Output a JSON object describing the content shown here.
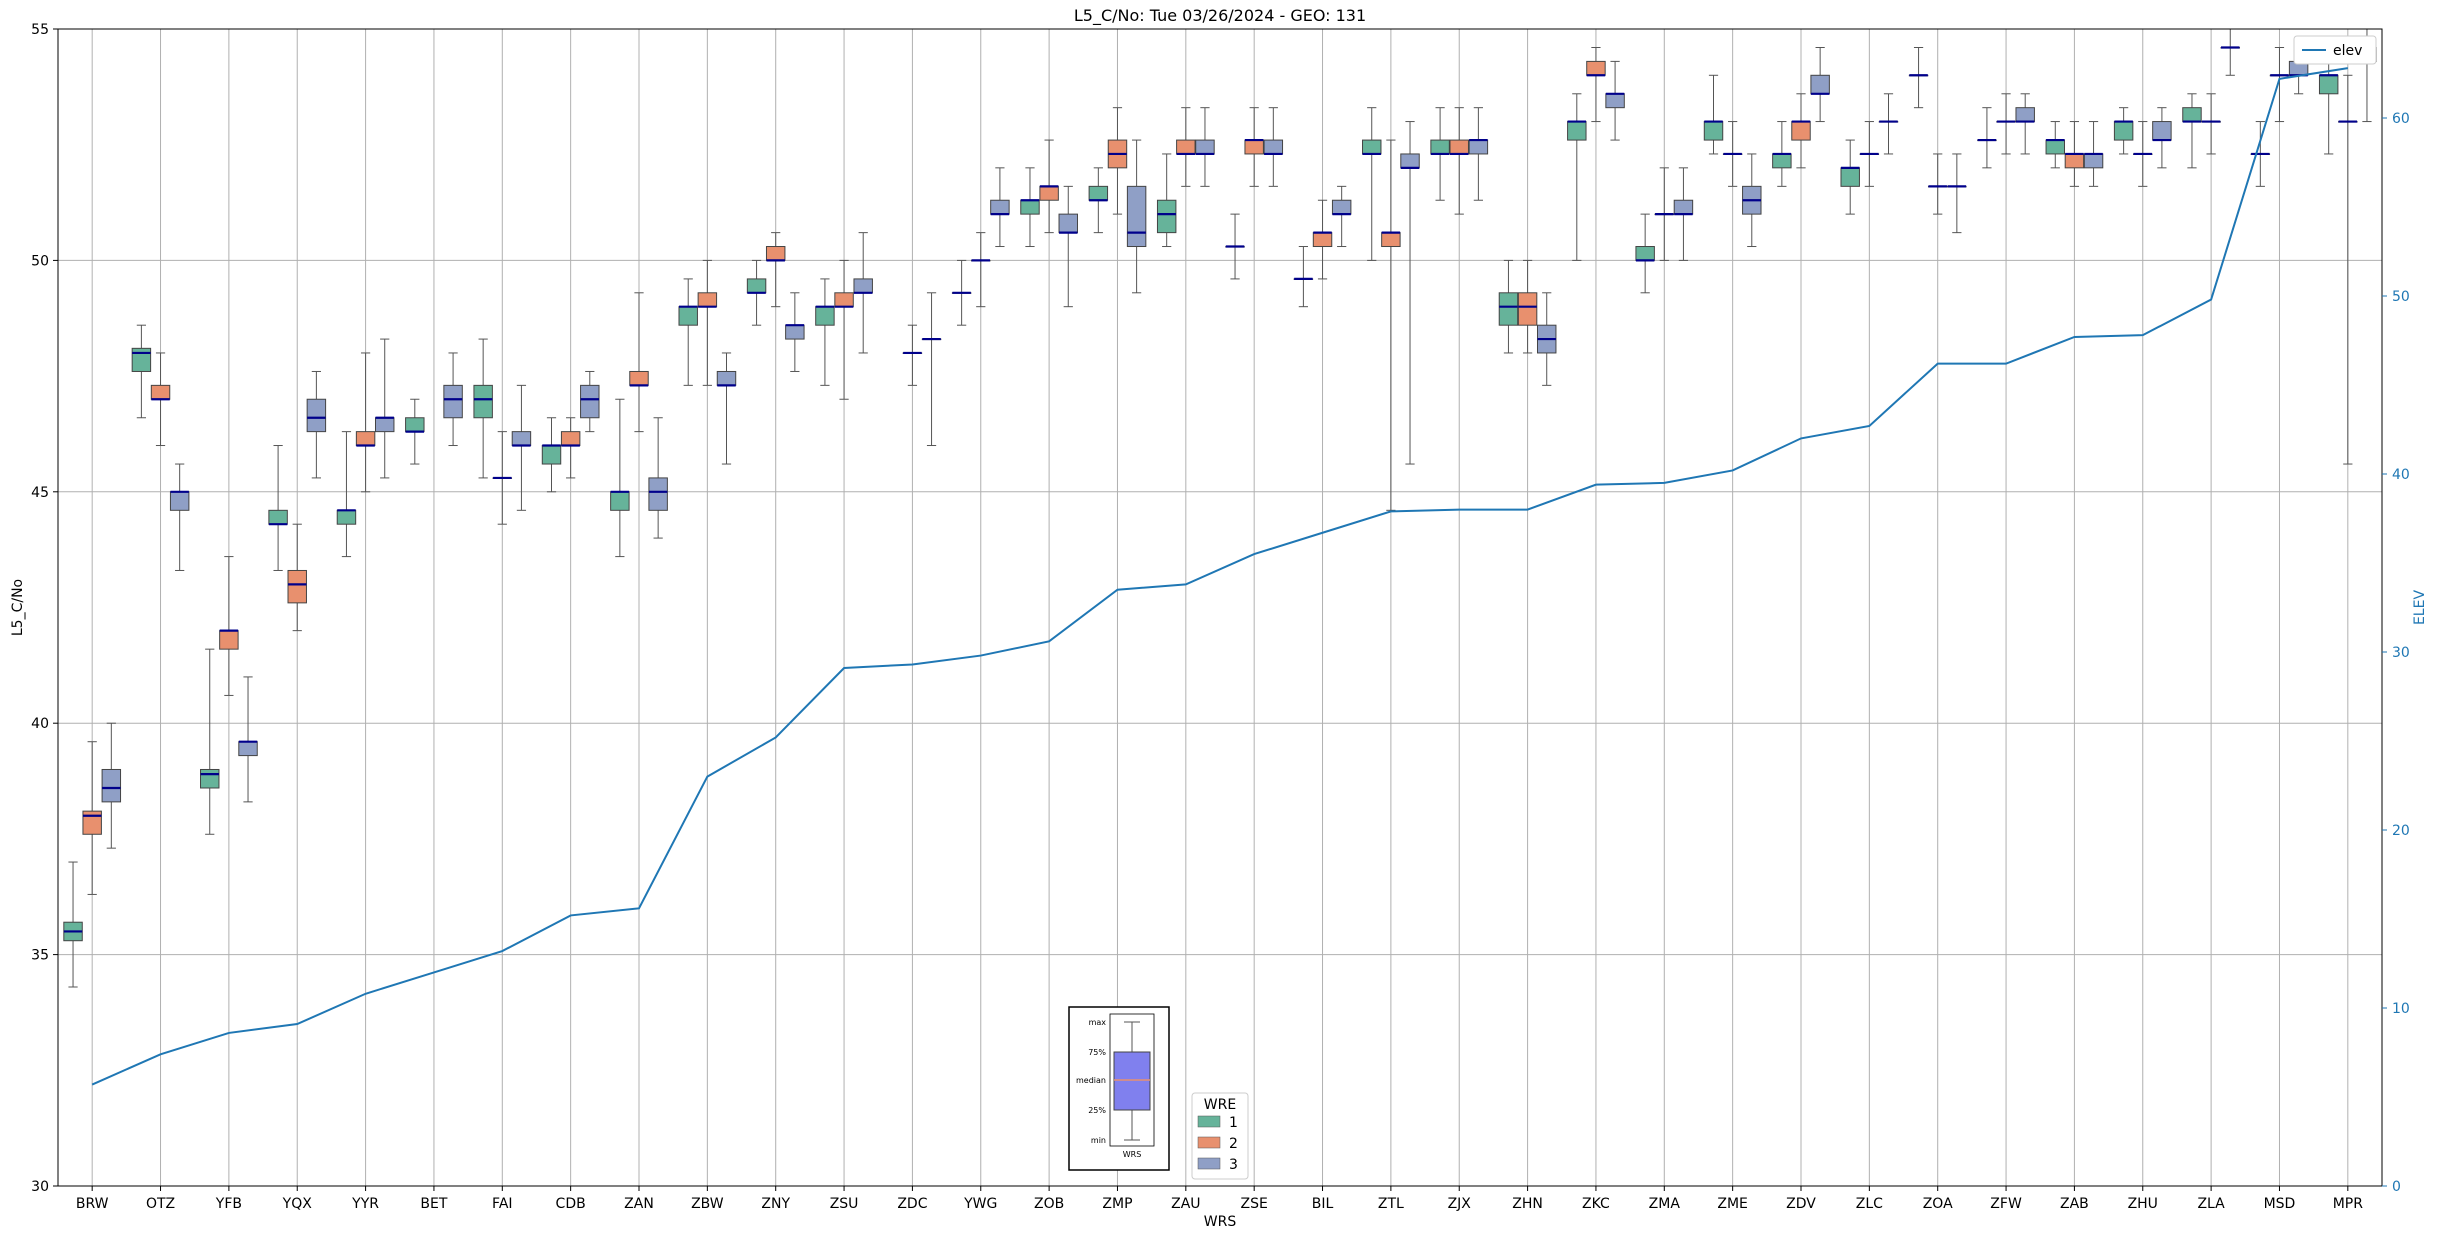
{
  "chart_data": {
    "type": "box",
    "title": "L5_C/No: Tue 03/26/2024 - GEO: 131",
    "xlabel": "WRS",
    "ylabel": "L5_C/No",
    "y2label": "ELEV",
    "ylim": [
      30,
      55
    ],
    "y2lim": [
      0,
      65
    ],
    "yticks": [
      30,
      35,
      40,
      45,
      50,
      55
    ],
    "y2ticks": [
      0,
      10,
      20,
      30,
      40,
      50,
      60
    ],
    "grid": true,
    "categories": [
      "BRW",
      "OTZ",
      "YFB",
      "YQX",
      "YYR",
      "BET",
      "FAI",
      "CDB",
      "ZAN",
      "ZBW",
      "ZNY",
      "ZSU",
      "ZDC",
      "YWG",
      "ZOB",
      "ZMP",
      "ZAU",
      "ZSE",
      "BIL",
      "ZTL",
      "ZJX",
      "ZHN",
      "ZKC",
      "ZMA",
      "ZME",
      "ZDV",
      "ZLC",
      "ZOA",
      "ZFW",
      "ZAB",
      "ZHU",
      "ZLA",
      "MSD",
      "MPR"
    ],
    "hue_title": "WRE",
    "hue_levels": [
      {
        "name": "1",
        "color": "#66b39a"
      },
      {
        "name": "2",
        "color": "#e8906e"
      },
      {
        "name": "3",
        "color": "#8f9fc6"
      }
    ],
    "median_color": "#00008b",
    "boxes": [
      {
        "cat": "BRW",
        "wre": 1,
        "min": 34.3,
        "q1": 35.3,
        "med": 35.5,
        "q3": 35.7,
        "max": 37.0
      },
      {
        "cat": "BRW",
        "wre": 2,
        "min": 36.3,
        "q1": 37.6,
        "med": 38.0,
        "q3": 38.1,
        "max": 39.6
      },
      {
        "cat": "BRW",
        "wre": 3,
        "min": 37.3,
        "q1": 38.3,
        "med": 38.6,
        "q3": 39.0,
        "max": 40.0
      },
      {
        "cat": "OTZ",
        "wre": 1,
        "min": 46.6,
        "q1": 47.6,
        "med": 48.0,
        "q3": 48.1,
        "max": 48.6
      },
      {
        "cat": "OTZ",
        "wre": 2,
        "min": 46.0,
        "q1": 47.0,
        "med": 47.0,
        "q3": 47.3,
        "max": 48.0
      },
      {
        "cat": "OTZ",
        "wre": 3,
        "min": 43.3,
        "q1": 44.6,
        "med": 45.0,
        "q3": 45.0,
        "max": 45.6
      },
      {
        "cat": "YFB",
        "wre": 1,
        "min": 37.6,
        "q1": 38.6,
        "med": 38.9,
        "q3": 39.0,
        "max": 41.6
      },
      {
        "cat": "YFB",
        "wre": 2,
        "min": 40.6,
        "q1": 41.6,
        "med": 42.0,
        "q3": 42.0,
        "max": 43.6
      },
      {
        "cat": "YFB",
        "wre": 3,
        "min": 38.3,
        "q1": 39.3,
        "med": 39.6,
        "q3": 39.6,
        "max": 41.0
      },
      {
        "cat": "YQX",
        "wre": 1,
        "min": 43.3,
        "q1": 44.3,
        "med": 44.3,
        "q3": 44.6,
        "max": 46.0
      },
      {
        "cat": "YQX",
        "wre": 2,
        "min": 42.0,
        "q1": 42.6,
        "med": 43.0,
        "q3": 43.3,
        "max": 44.3
      },
      {
        "cat": "YQX",
        "wre": 3,
        "min": 45.3,
        "q1": 46.3,
        "med": 46.6,
        "q3": 47.0,
        "max": 47.6
      },
      {
        "cat": "YYR",
        "wre": 1,
        "min": 43.6,
        "q1": 44.3,
        "med": 44.6,
        "q3": 44.6,
        "max": 46.3
      },
      {
        "cat": "YYR",
        "wre": 2,
        "min": 45.0,
        "q1": 46.0,
        "med": 46.0,
        "q3": 46.3,
        "max": 48.0
      },
      {
        "cat": "YYR",
        "wre": 3,
        "min": 45.3,
        "q1": 46.3,
        "med": 46.6,
        "q3": 46.6,
        "max": 48.3
      },
      {
        "cat": "BET",
        "wre": 1,
        "min": 45.6,
        "q1": 46.3,
        "med": 46.3,
        "q3": 46.6,
        "max": 47.0
      },
      {
        "cat": "BET",
        "wre": 3,
        "min": 46.0,
        "q1": 46.6,
        "med": 47.0,
        "q3": 47.3,
        "max": 48.0
      },
      {
        "cat": "FAI",
        "wre": 1,
        "min": 45.3,
        "q1": 46.6,
        "med": 47.0,
        "q3": 47.3,
        "max": 48.3
      },
      {
        "cat": "FAI",
        "wre": 2,
        "min": 44.3,
        "q1": 45.3,
        "med": 45.3,
        "q3": 45.3,
        "max": 46.3
      },
      {
        "cat": "FAI",
        "wre": 3,
        "min": 44.6,
        "q1": 46.0,
        "med": 46.0,
        "q3": 46.3,
        "max": 47.3
      },
      {
        "cat": "CDB",
        "wre": 1,
        "min": 45.0,
        "q1": 45.6,
        "med": 46.0,
        "q3": 46.0,
        "max": 46.6
      },
      {
        "cat": "CDB",
        "wre": 2,
        "min": 45.3,
        "q1": 46.0,
        "med": 46.0,
        "q3": 46.3,
        "max": 46.6
      },
      {
        "cat": "CDB",
        "wre": 3,
        "min": 46.3,
        "q1": 46.6,
        "med": 47.0,
        "q3": 47.3,
        "max": 47.6
      },
      {
        "cat": "ZAN",
        "wre": 1,
        "min": 43.6,
        "q1": 44.6,
        "med": 45.0,
        "q3": 45.0,
        "max": 47.0
      },
      {
        "cat": "ZAN",
        "wre": 2,
        "min": 46.3,
        "q1": 47.3,
        "med": 47.3,
        "q3": 47.6,
        "max": 49.3
      },
      {
        "cat": "ZAN",
        "wre": 3,
        "min": 44.0,
        "q1": 44.6,
        "med": 45.0,
        "q3": 45.3,
        "max": 46.6
      },
      {
        "cat": "ZBW",
        "wre": 1,
        "min": 47.3,
        "q1": 48.6,
        "med": 49.0,
        "q3": 49.0,
        "max": 49.6
      },
      {
        "cat": "ZBW",
        "wre": 2,
        "min": 47.3,
        "q1": 49.0,
        "med": 49.0,
        "q3": 49.3,
        "max": 50.0
      },
      {
        "cat": "ZBW",
        "wre": 3,
        "min": 45.6,
        "q1": 47.3,
        "med": 47.3,
        "q3": 47.6,
        "max": 48.0
      },
      {
        "cat": "ZNY",
        "wre": 1,
        "min": 48.6,
        "q1": 49.3,
        "med": 49.3,
        "q3": 49.6,
        "max": 50.0
      },
      {
        "cat": "ZNY",
        "wre": 2,
        "min": 49.0,
        "q1": 50.0,
        "med": 50.0,
        "q3": 50.3,
        "max": 50.6
      },
      {
        "cat": "ZNY",
        "wre": 3,
        "min": 47.6,
        "q1": 48.3,
        "med": 48.6,
        "q3": 48.6,
        "max": 49.3
      },
      {
        "cat": "ZSU",
        "wre": 1,
        "min": 47.3,
        "q1": 48.6,
        "med": 49.0,
        "q3": 49.0,
        "max": 49.6
      },
      {
        "cat": "ZSU",
        "wre": 2,
        "min": 47.0,
        "q1": 49.0,
        "med": 49.0,
        "q3": 49.3,
        "max": 50.0
      },
      {
        "cat": "ZSU",
        "wre": 3,
        "min": 48.0,
        "q1": 49.3,
        "med": 49.3,
        "q3": 49.6,
        "max": 50.6
      },
      {
        "cat": "ZDC",
        "wre": 2,
        "min": 47.3,
        "q1": 48.0,
        "med": 48.0,
        "q3": 48.0,
        "max": 48.6
      },
      {
        "cat": "ZDC",
        "wre": 3,
        "min": 46.0,
        "q1": 48.3,
        "med": 48.3,
        "q3": 48.3,
        "max": 49.3
      },
      {
        "cat": "YWG",
        "wre": 1,
        "min": 48.6,
        "q1": 49.3,
        "med": 49.3,
        "q3": 49.3,
        "max": 50.0
      },
      {
        "cat": "YWG",
        "wre": 2,
        "min": 49.0,
        "q1": 50.0,
        "med": 50.0,
        "q3": 50.0,
        "max": 50.6
      },
      {
        "cat": "YWG",
        "wre": 3,
        "min": 50.3,
        "q1": 51.0,
        "med": 51.0,
        "q3": 51.3,
        "max": 52.0
      },
      {
        "cat": "ZOB",
        "wre": 1,
        "min": 50.3,
        "q1": 51.0,
        "med": 51.3,
        "q3": 51.3,
        "max": 52.0
      },
      {
        "cat": "ZOB",
        "wre": 2,
        "min": 50.6,
        "q1": 51.3,
        "med": 51.6,
        "q3": 51.6,
        "max": 52.6
      },
      {
        "cat": "ZOB",
        "wre": 3,
        "min": 49.0,
        "q1": 50.6,
        "med": 50.6,
        "q3": 51.0,
        "max": 51.6
      },
      {
        "cat": "ZMP",
        "wre": 1,
        "min": 50.6,
        "q1": 51.3,
        "med": 51.3,
        "q3": 51.6,
        "max": 52.0
      },
      {
        "cat": "ZMP",
        "wre": 2,
        "min": 51.0,
        "q1": 52.0,
        "med": 52.3,
        "q3": 52.6,
        "max": 53.3
      },
      {
        "cat": "ZMP",
        "wre": 3,
        "min": 49.3,
        "q1": 50.3,
        "med": 50.6,
        "q3": 51.6,
        "max": 52.6
      },
      {
        "cat": "ZAU",
        "wre": 1,
        "min": 50.3,
        "q1": 50.6,
        "med": 51.0,
        "q3": 51.3,
        "max": 52.3
      },
      {
        "cat": "ZAU",
        "wre": 2,
        "min": 51.6,
        "q1": 52.3,
        "med": 52.3,
        "q3": 52.6,
        "max": 53.3
      },
      {
        "cat": "ZAU",
        "wre": 3,
        "min": 51.6,
        "q1": 52.3,
        "med": 52.3,
        "q3": 52.6,
        "max": 53.3
      },
      {
        "cat": "ZSE",
        "wre": 1,
        "min": 49.6,
        "q1": 50.3,
        "med": 50.3,
        "q3": 50.3,
        "max": 51.0
      },
      {
        "cat": "ZSE",
        "wre": 2,
        "min": 51.6,
        "q1": 52.3,
        "med": 52.6,
        "q3": 52.6,
        "max": 53.3
      },
      {
        "cat": "ZSE",
        "wre": 3,
        "min": 51.6,
        "q1": 52.3,
        "med": 52.3,
        "q3": 52.6,
        "max": 53.3
      },
      {
        "cat": "BIL",
        "wre": 1,
        "min": 49.0,
        "q1": 49.6,
        "med": 49.6,
        "q3": 49.6,
        "max": 50.3
      },
      {
        "cat": "BIL",
        "wre": 2,
        "min": 49.6,
        "q1": 50.3,
        "med": 50.6,
        "q3": 50.6,
        "max": 51.3
      },
      {
        "cat": "BIL",
        "wre": 3,
        "min": 50.3,
        "q1": 51.0,
        "med": 51.0,
        "q3": 51.3,
        "max": 51.6
      },
      {
        "cat": "ZTL",
        "wre": 1,
        "min": 50.0,
        "q1": 52.3,
        "med": 52.3,
        "q3": 52.6,
        "max": 53.3
      },
      {
        "cat": "ZTL",
        "wre": 2,
        "min": 44.6,
        "q1": 50.3,
        "med": 50.6,
        "q3": 50.6,
        "max": 52.6
      },
      {
        "cat": "ZTL",
        "wre": 3,
        "min": 45.6,
        "q1": 52.0,
        "med": 52.0,
        "q3": 52.3,
        "max": 53.0
      },
      {
        "cat": "ZJX",
        "wre": 1,
        "min": 51.3,
        "q1": 52.3,
        "med": 52.3,
        "q3": 52.6,
        "max": 53.3
      },
      {
        "cat": "ZJX",
        "wre": 2,
        "min": 51.0,
        "q1": 52.3,
        "med": 52.3,
        "q3": 52.6,
        "max": 53.3
      },
      {
        "cat": "ZJX",
        "wre": 3,
        "min": 51.3,
        "q1": 52.3,
        "med": 52.6,
        "q3": 52.6,
        "max": 53.3
      },
      {
        "cat": "ZHN",
        "wre": 1,
        "min": 48.0,
        "q1": 48.6,
        "med": 49.0,
        "q3": 49.3,
        "max": 50.0
      },
      {
        "cat": "ZHN",
        "wre": 2,
        "min": 48.0,
        "q1": 48.6,
        "med": 49.0,
        "q3": 49.3,
        "max": 50.0
      },
      {
        "cat": "ZHN",
        "wre": 3,
        "min": 47.3,
        "q1": 48.0,
        "med": 48.3,
        "q3": 48.6,
        "max": 49.3
      },
      {
        "cat": "ZKC",
        "wre": 1,
        "min": 50.0,
        "q1": 52.6,
        "med": 53.0,
        "q3": 53.0,
        "max": 53.6
      },
      {
        "cat": "ZKC",
        "wre": 2,
        "min": 53.0,
        "q1": 54.0,
        "med": 54.0,
        "q3": 54.3,
        "max": 54.6
      },
      {
        "cat": "ZKC",
        "wre": 3,
        "min": 52.6,
        "q1": 53.3,
        "med": 53.6,
        "q3": 53.6,
        "max": 54.3
      },
      {
        "cat": "ZMA",
        "wre": 1,
        "min": 49.3,
        "q1": 50.0,
        "med": 50.0,
        "q3": 50.3,
        "max": 51.0
      },
      {
        "cat": "ZMA",
        "wre": 2,
        "min": 50.0,
        "q1": 51.0,
        "med": 51.0,
        "q3": 51.0,
        "max": 52.0
      },
      {
        "cat": "ZMA",
        "wre": 3,
        "min": 50.0,
        "q1": 51.0,
        "med": 51.0,
        "q3": 51.3,
        "max": 52.0
      },
      {
        "cat": "ZME",
        "wre": 1,
        "min": 52.3,
        "q1": 52.6,
        "med": 53.0,
        "q3": 53.0,
        "max": 54.0
      },
      {
        "cat": "ZME",
        "wre": 2,
        "min": 51.6,
        "q1": 52.3,
        "med": 52.3,
        "q3": 52.3,
        "max": 53.0
      },
      {
        "cat": "ZME",
        "wre": 3,
        "min": 50.3,
        "q1": 51.0,
        "med": 51.3,
        "q3": 51.6,
        "max": 52.3
      },
      {
        "cat": "ZDV",
        "wre": 1,
        "min": 51.6,
        "q1": 52.0,
        "med": 52.3,
        "q3": 52.3,
        "max": 53.0
      },
      {
        "cat": "ZDV",
        "wre": 2,
        "min": 52.0,
        "q1": 52.6,
        "med": 53.0,
        "q3": 53.0,
        "max": 53.6
      },
      {
        "cat": "ZDV",
        "wre": 3,
        "min": 53.0,
        "q1": 53.6,
        "med": 53.6,
        "q3": 54.0,
        "max": 54.6
      },
      {
        "cat": "ZLC",
        "wre": 1,
        "min": 51.0,
        "q1": 51.6,
        "med": 52.0,
        "q3": 52.0,
        "max": 52.6
      },
      {
        "cat": "ZLC",
        "wre": 2,
        "min": 51.6,
        "q1": 52.3,
        "med": 52.3,
        "q3": 52.3,
        "max": 53.0
      },
      {
        "cat": "ZLC",
        "wre": 3,
        "min": 52.3,
        "q1": 53.0,
        "med": 53.0,
        "q3": 53.0,
        "max": 53.6
      },
      {
        "cat": "ZOA",
        "wre": 1,
        "min": 53.3,
        "q1": 54.0,
        "med": 54.0,
        "q3": 54.0,
        "max": 54.6
      },
      {
        "cat": "ZOA",
        "wre": 2,
        "min": 51.0,
        "q1": 51.6,
        "med": 51.6,
        "q3": 51.6,
        "max": 52.3
      },
      {
        "cat": "ZOA",
        "wre": 3,
        "min": 50.6,
        "q1": 51.6,
        "med": 51.6,
        "q3": 51.6,
        "max": 52.3
      },
      {
        "cat": "ZFW",
        "wre": 1,
        "min": 52.0,
        "q1": 52.6,
        "med": 52.6,
        "q3": 52.6,
        "max": 53.3
      },
      {
        "cat": "ZFW",
        "wre": 2,
        "min": 52.3,
        "q1": 53.0,
        "med": 53.0,
        "q3": 53.0,
        "max": 53.6
      },
      {
        "cat": "ZFW",
        "wre": 3,
        "min": 52.3,
        "q1": 53.0,
        "med": 53.0,
        "q3": 53.3,
        "max": 53.6
      },
      {
        "cat": "ZAB",
        "wre": 1,
        "min": 52.0,
        "q1": 52.3,
        "med": 52.6,
        "q3": 52.6,
        "max": 53.0
      },
      {
        "cat": "ZAB",
        "wre": 2,
        "min": 51.6,
        "q1": 52.0,
        "med": 52.3,
        "q3": 52.3,
        "max": 53.0
      },
      {
        "cat": "ZAB",
        "wre": 3,
        "min": 51.6,
        "q1": 52.0,
        "med": 52.3,
        "q3": 52.3,
        "max": 53.0
      },
      {
        "cat": "ZHU",
        "wre": 1,
        "min": 52.3,
        "q1": 52.6,
        "med": 53.0,
        "q3": 53.0,
        "max": 53.3
      },
      {
        "cat": "ZHU",
        "wre": 2,
        "min": 51.6,
        "q1": 52.3,
        "med": 52.3,
        "q3": 52.3,
        "max": 53.0
      },
      {
        "cat": "ZHU",
        "wre": 3,
        "min": 52.0,
        "q1": 52.6,
        "med": 52.6,
        "q3": 53.0,
        "max": 53.3
      },
      {
        "cat": "ZLA",
        "wre": 1,
        "min": 52.0,
        "q1": 53.0,
        "med": 53.0,
        "q3": 53.3,
        "max": 53.6
      },
      {
        "cat": "ZLA",
        "wre": 2,
        "min": 52.3,
        "q1": 53.0,
        "med": 53.0,
        "q3": 53.0,
        "max": 53.6
      },
      {
        "cat": "ZLA",
        "wre": 3,
        "min": 54.0,
        "q1": 54.6,
        "med": 54.6,
        "q3": 54.6,
        "max": 55.0
      },
      {
        "cat": "MSD",
        "wre": 1,
        "min": 51.6,
        "q1": 52.3,
        "med": 52.3,
        "q3": 52.3,
        "max": 53.0
      },
      {
        "cat": "MSD",
        "wre": 2,
        "min": 53.0,
        "q1": 54.0,
        "med": 54.0,
        "q3": 54.0,
        "max": 54.6
      },
      {
        "cat": "MSD",
        "wre": 3,
        "min": 53.6,
        "q1": 54.0,
        "med": 54.0,
        "q3": 54.3,
        "max": 54.6
      },
      {
        "cat": "MPR",
        "wre": 1,
        "min": 52.3,
        "q1": 53.6,
        "med": 54.0,
        "q3": 54.0,
        "max": 54.6
      },
      {
        "cat": "MPR",
        "wre": 2,
        "min": 45.6,
        "q1": 53.0,
        "med": 53.0,
        "q3": 53.0,
        "max": 54.0
      },
      {
        "cat": "MPR",
        "wre": 3,
        "min": 53.0,
        "q1": 54.3,
        "med": 54.6,
        "q3": 54.6,
        "max": 55.0
      }
    ],
    "series": [
      {
        "name": "elev",
        "axis": "right",
        "color": "#1f77b4",
        "values": [
          5.7,
          7.4,
          8.6,
          9.1,
          10.8,
          12.0,
          13.2,
          15.2,
          15.6,
          23.0,
          25.2,
          29.1,
          29.3,
          29.8,
          30.6,
          33.5,
          33.8,
          35.5,
          36.7,
          37.9,
          38.0,
          38.0,
          39.4,
          39.5,
          40.2,
          42.0,
          42.7,
          46.2,
          46.2,
          47.7,
          47.8,
          49.8,
          62.2,
          62.8
        ]
      }
    ],
    "legends": {
      "hue_legend_location": "bottom-center",
      "line_legend_location": "top-right"
    },
    "inset": {
      "labels": [
        "max",
        "75%",
        "median",
        "25%",
        "min"
      ],
      "xlabel": "WRS"
    }
  }
}
